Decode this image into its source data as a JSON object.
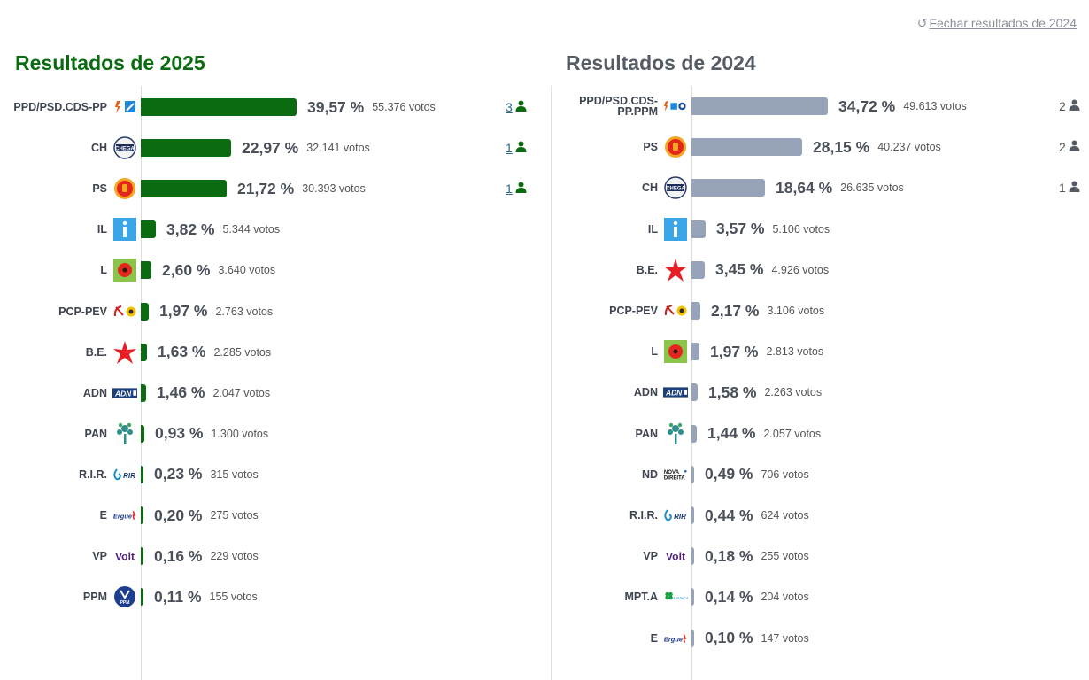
{
  "close_link": "Fechar resultados de 2024",
  "colors": {
    "bar2025": "#0a6b10",
    "bar2024": "#97a3b8",
    "seat2025": "#0a6b10",
    "seat2024": "#555c66"
  },
  "chart_data": [
    {
      "type": "bar",
      "orientation": "horizontal",
      "title": "Resultados de 2025",
      "categories": [
        "PPD/PSD.CDS-PP",
        "CH",
        "PS",
        "IL",
        "L",
        "PCP-PEV",
        "B.E.",
        "ADN",
        "PAN",
        "R.I.R.",
        "E",
        "VP",
        "PPM"
      ],
      "values": [
        39.57,
        22.97,
        21.72,
        3.82,
        2.6,
        1.97,
        1.63,
        1.46,
        0.93,
        0.23,
        0.2,
        0.16,
        0.11
      ],
      "labels": [
        "39,57 %",
        "22,97 %",
        "21,72 %",
        "3,82 %",
        "2,60 %",
        "1,97 %",
        "1,63 %",
        "1,46 %",
        "0,93 %",
        "0,23 %",
        "0,20 %",
        "0,16 %",
        "0,11 %"
      ],
      "votes": [
        "55.376 votos",
        "32.141 votos",
        "30.393 votos",
        "5.344 votos",
        "3.640 votos",
        "2.763 votos",
        "2.285 votos",
        "2.047 votos",
        "1.300 votos",
        "315 votos",
        "275 votos",
        "229 votos",
        "155 votos"
      ],
      "seats": [
        "3",
        "1",
        "1",
        "",
        "",
        "",
        "",
        "",
        "",
        "",
        "",
        "",
        ""
      ],
      "logos": [
        "ppd-psd-cds-logo",
        "chega-logo",
        "ps-logo",
        "il-logo",
        "livre-logo",
        "cdu-logo",
        "be-logo",
        "adn-logo",
        "pan-logo",
        "rir-logo",
        "ergue-te-logo",
        "volt-logo",
        "ppm-logo"
      ]
    },
    {
      "type": "bar",
      "orientation": "horizontal",
      "title": "Resultados de 2024",
      "categories": [
        "PPD/PSD.CDS-PP.PPM",
        "PS",
        "CH",
        "IL",
        "B.E.",
        "PCP-PEV",
        "L",
        "ADN",
        "PAN",
        "ND",
        "R.I.R.",
        "VP",
        "MPT.A",
        "E"
      ],
      "values": [
        34.72,
        28.15,
        18.64,
        3.57,
        3.45,
        2.17,
        1.97,
        1.58,
        1.44,
        0.49,
        0.44,
        0.18,
        0.14,
        0.1
      ],
      "labels": [
        "34,72 %",
        "28,15 %",
        "18,64 %",
        "3,57 %",
        "3,45 %",
        "2,17 %",
        "1,97 %",
        "1,58 %",
        "1,44 %",
        "0,49 %",
        "0,44 %",
        "0,18 %",
        "0,14 %",
        "0,10 %"
      ],
      "votes": [
        "49.613 votos",
        "40.237 votos",
        "26.635 votos",
        "5.106 votos",
        "4.926 votos",
        "3.106 votos",
        "2.813 votos",
        "2.263 votos",
        "2.057 votos",
        "706 votos",
        "624 votos",
        "255 votos",
        "204 votos",
        "147 votos"
      ],
      "seats": [
        "2",
        "2",
        "1",
        "",
        "",
        "",
        "",
        "",
        "",
        "",
        "",
        "",
        "",
        ""
      ],
      "logos": [
        "ad-logo",
        "ps-logo",
        "chega-logo",
        "il-logo",
        "be-logo",
        "cdu-logo",
        "livre-logo",
        "adn-logo",
        "pan-logo",
        "nova-direita-logo",
        "rir-logo",
        "volt-logo",
        "mpt-alianca-logo",
        "ergue-te-logo"
      ]
    }
  ]
}
